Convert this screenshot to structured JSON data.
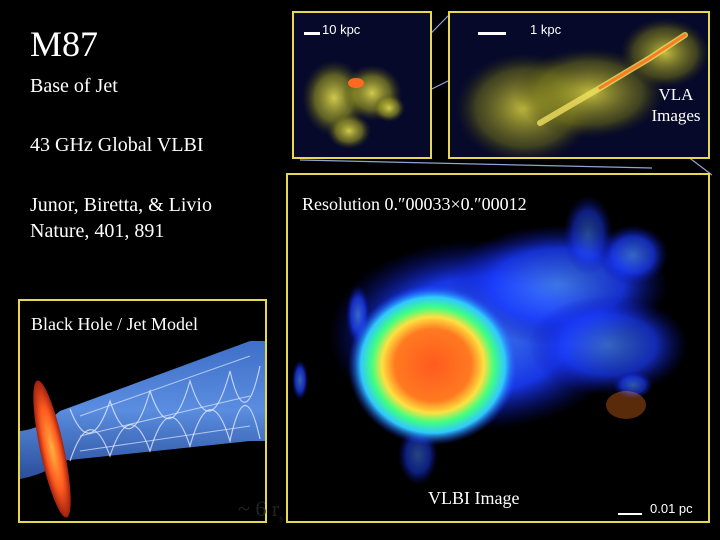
{
  "slide": {
    "title": "M87",
    "subtitle": "Base of Jet",
    "instrument": "43 GHz Global VLBI",
    "citation_line1": "Junor, Biretta, & Livio",
    "citation_line2": "Nature, 401, 891",
    "vla_label_line1": "VLA",
    "vla_label_line2": "Images"
  },
  "panels": {
    "vla_left": {
      "scale_label": "10 kpc"
    },
    "vla_right": {
      "scale_label": "1 kpc"
    },
    "vlbi": {
      "resolution_label": "Resolution 0.″00033×0.″00012",
      "caption": "VLBI Image",
      "scale_label": "0.01 pc"
    },
    "model": {
      "label": "Black Hole / Jet Model",
      "annotation_prefix": "~ 6",
      "annotation_symbol": "r",
      "annotation_subscript": "s"
    }
  },
  "colors": {
    "frame": "#e6d94f",
    "connector": "#8fa3d6",
    "vla_emission": "#c8c030",
    "vlbi_core": "#ff5a1f"
  }
}
